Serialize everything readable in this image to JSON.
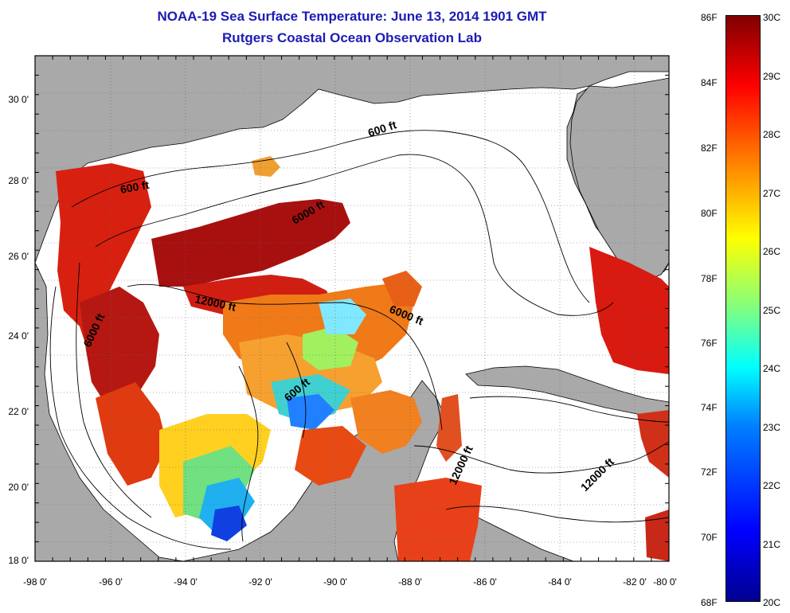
{
  "header": {
    "title": "NOAA-19 Sea Surface Temperature:  June 13, 2014 1901 GMT",
    "subtitle": "Rutgers Coastal Ocean Observation Lab"
  },
  "axes": {
    "x_ticks": [
      "-98 0'",
      "-96 0'",
      "-94 0'",
      "-92 0'",
      "-90 0'",
      "-88 0'",
      "-86 0'",
      "-84 0'",
      "-82 0'",
      "-80 0'"
    ],
    "y_ticks": [
      "30 0'",
      "28 0'",
      "26 0'",
      "24 0'",
      "22 0'",
      "20 0'",
      "18 0'"
    ]
  },
  "contour_labels": [
    {
      "text": "600 ft",
      "rotate": -18
    },
    {
      "text": "600 ft",
      "rotate": -10
    },
    {
      "text": "6000 ft",
      "rotate": -30
    },
    {
      "text": "12000 ft",
      "rotate": 12
    },
    {
      "text": "6000 ft",
      "rotate": 22
    },
    {
      "text": "6000 ft",
      "rotate": -65
    },
    {
      "text": "600 ft",
      "rotate": -40
    },
    {
      "text": "12000 ft",
      "rotate": -65
    },
    {
      "text": "12000 ft",
      "rotate": -45
    }
  ],
  "colorbar": {
    "fahrenheit": [
      "86F",
      "84F",
      "82F",
      "80F",
      "78F",
      "76F",
      "74F",
      "72F",
      "70F",
      "68F"
    ],
    "celsius": [
      "30C",
      "29C",
      "28C",
      "27C",
      "26C",
      "25C",
      "24C",
      "23C",
      "22C",
      "21C",
      "20C"
    ]
  },
  "colors": {
    "title": "#1c1cb4",
    "land": "#a9a9a9",
    "ocean_nodata": "#ffffff",
    "cmap": [
      "#00008f",
      "#0000ff",
      "#0080ff",
      "#00ffff",
      "#80ff80",
      "#ffff00",
      "#ff8000",
      "#ff0000",
      "#800000"
    ]
  }
}
